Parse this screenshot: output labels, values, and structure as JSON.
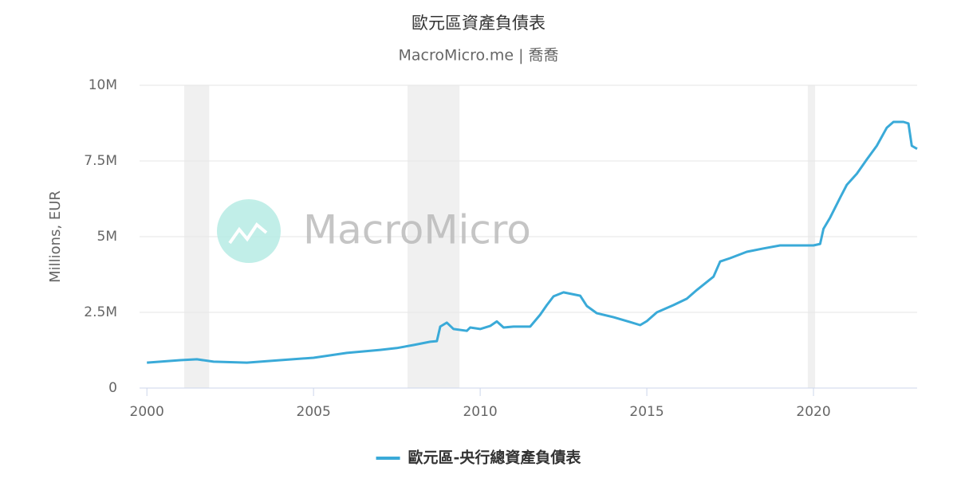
{
  "chart_data": {
    "type": "line",
    "title": "歐元區資產負債表",
    "subtitle": "MacroMicro.me | 喬喬",
    "watermark": "MacroMicro",
    "ylabel": "Millions, EUR",
    "xlim": [
      1999.78,
      2023.11
    ],
    "xticks": [
      2000,
      2005,
      2010,
      2015,
      2020
    ],
    "ylim": [
      0,
      10000000
    ],
    "yticks": [
      0,
      {
        "value": 2500000,
        "label": "2.5M"
      },
      {
        "value": 5000000,
        "label": "5M"
      },
      {
        "value": 7500000,
        "label": "7.5M"
      },
      {
        "value": 10000000,
        "label": "10M"
      }
    ],
    "grid": true,
    "recessions": [
      [
        2001.12,
        2001.87
      ],
      [
        2007.82,
        2009.38
      ],
      [
        2019.83,
        2020.05
      ]
    ],
    "series": [
      {
        "name": "歐元區-央行總資產負債表",
        "color": "#3aaad8",
        "x": [
          2000.0,
          2001.0,
          2001.5,
          2002.0,
          2003.0,
          2004.0,
          2005.0,
          2006.0,
          2007.0,
          2007.5,
          2008.0,
          2008.5,
          2008.7,
          2008.8,
          2009.0,
          2009.2,
          2009.6,
          2009.7,
          2010.0,
          2010.3,
          2010.5,
          2010.7,
          2011.0,
          2011.5,
          2011.8,
          2012.0,
          2012.2,
          2012.5,
          2013.0,
          2013.2,
          2013.5,
          2014.0,
          2014.5,
          2014.8,
          2015.0,
          2015.3,
          2015.8,
          2016.2,
          2016.5,
          2017.0,
          2017.2,
          2017.5,
          2018.0,
          2018.5,
          2019.0,
          2019.5,
          2020.0,
          2020.2,
          2020.3,
          2020.5,
          2020.8,
          2021.0,
          2021.3,
          2021.6,
          2021.9,
          2022.2,
          2022.4,
          2022.7,
          2022.85,
          2022.95,
          2023.11
        ],
        "values": [
          840000,
          920000,
          950000,
          870000,
          840000,
          920000,
          1000000,
          1160000,
          1260000,
          1320000,
          1420000,
          1530000,
          1550000,
          2030000,
          2160000,
          1950000,
          1890000,
          2000000,
          1950000,
          2050000,
          2200000,
          2000000,
          2030000,
          2030000,
          2420000,
          2740000,
          3030000,
          3160000,
          3050000,
          2710000,
          2470000,
          2340000,
          2180000,
          2080000,
          2210000,
          2500000,
          2740000,
          2950000,
          3240000,
          3680000,
          4180000,
          4290000,
          4500000,
          4610000,
          4710000,
          4710000,
          4710000,
          4760000,
          5260000,
          5630000,
          6290000,
          6710000,
          7080000,
          7550000,
          8000000,
          8600000,
          8790000,
          8790000,
          8740000,
          8000000,
          7900000
        ]
      }
    ]
  }
}
